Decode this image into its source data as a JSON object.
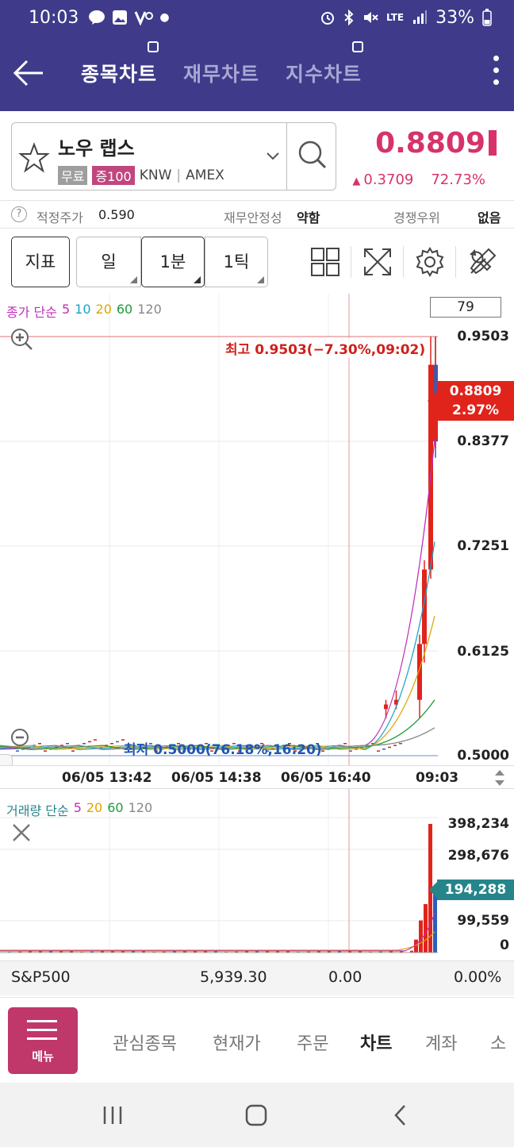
{
  "status_bar": {
    "time": "10:03",
    "battery": "33%",
    "network": "LTE"
  },
  "app_bar": {
    "tabs": [
      {
        "label": "종목차트",
        "active": true
      },
      {
        "label": "재무차트",
        "active": false
      },
      {
        "label": "지수차트",
        "active": false
      }
    ]
  },
  "stock": {
    "name": "노우 랩스",
    "tag_free": "무료",
    "tag_margin": "증100",
    "ticker": "KNW",
    "exchange": "AMEX",
    "price": "0.8809",
    "change": "0.3709",
    "change_pct": "72.73%",
    "color_up": "#d6336c"
  },
  "info": {
    "fair_price_label": "적정주가",
    "fair_price_value": "0.590",
    "stability_label": "재무안정성",
    "stability_value": "약함",
    "competitive_label": "경쟁우위",
    "competitive_value": "없음"
  },
  "toolbar": {
    "indicator": "지표",
    "period_day": "일",
    "period_1min": "1분",
    "period_1tick": "1틱"
  },
  "chart": {
    "legend_prefix": "종가 단순",
    "ma_periods": [
      {
        "label": "5",
        "color": "#c02fb8"
      },
      {
        "label": "10",
        "color": "#1aa3c8"
      },
      {
        "label": "20",
        "color": "#e0a400"
      },
      {
        "label": "60",
        "color": "#1f9a3a"
      },
      {
        "label": "120",
        "color": "#888888"
      }
    ],
    "count": "79",
    "price_labels": [
      "0.9503",
      "0.8377",
      "0.7251",
      "0.6125",
      "0.5000"
    ],
    "current_price": "0.8809",
    "current_pct": "2.97%",
    "high_label": "최고 0.9503(−7.30%,09:02)",
    "low_label": "최저 0.5000(76.18%,16:20)",
    "time_labels": [
      "06/05 13:42",
      "06/05 14:38",
      "06/05 16:40",
      "09:03"
    ],
    "vol_legend_prefix": "거래량 단순",
    "vol_periods": [
      {
        "label": "5",
        "color": "#c02fb8"
      },
      {
        "label": "20",
        "color": "#e0a400"
      },
      {
        "label": "60",
        "color": "#1f9a3a"
      },
      {
        "label": "120",
        "color": "#888888"
      }
    ],
    "vol_labels": [
      "398,234",
      "298,676",
      "99,559",
      "0"
    ],
    "vol_current": "194,288"
  },
  "chart_data": {
    "type": "candlestick",
    "ylim": [
      0.5,
      0.9503
    ],
    "x_ticks": [
      "06/05 13:42",
      "06/05 14:38",
      "06/05 16:40",
      "09:03"
    ],
    "high": 0.9503,
    "low": 0.5,
    "last": 0.8809,
    "recent_candles": [
      {
        "open": 0.55,
        "high": 0.56,
        "low": 0.54,
        "close": 0.555
      },
      {
        "open": 0.555,
        "high": 0.57,
        "low": 0.55,
        "close": 0.56
      },
      {
        "open": 0.56,
        "high": 0.63,
        "low": 0.54,
        "close": 0.62
      },
      {
        "open": 0.62,
        "high": 0.71,
        "low": 0.6,
        "close": 0.7
      },
      {
        "open": 0.7,
        "high": 0.7502,
        "low": 0.69,
        "close": 0.74
      },
      {
        "open": 0.74,
        "high": 0.9503,
        "low": 0.72,
        "close": 0.92
      },
      {
        "open": 0.92,
        "high": 0.9503,
        "low": 0.82,
        "close": 0.8377
      },
      {
        "open": 0.84,
        "high": 0.9503,
        "low": 0.83,
        "close": 0.8809
      }
    ],
    "volume": {
      "ylim": [
        0,
        398234
      ],
      "recent_values": [
        40000,
        99559,
        150000,
        398234,
        194288
      ]
    }
  },
  "index_row": {
    "name": "S&P500",
    "value": "5,939.30",
    "change": "0.00",
    "change_pct": "0.00%"
  },
  "bottom_nav": {
    "menu_label": "메뉴",
    "items": [
      "관심종목",
      "현재가",
      "주문",
      "차트",
      "계좌",
      "소"
    ],
    "active_index": 3
  }
}
